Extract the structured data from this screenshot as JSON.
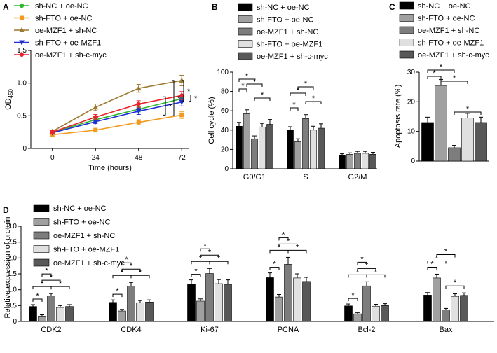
{
  "colors": {
    "black": "#000000",
    "green": "#2db82d",
    "orange": "#f39a1e",
    "olive": "#9b7a2f",
    "blue": "#1f2fd6",
    "red": "#e8232a",
    "g1": "#000000",
    "g2": "#a0a0a0",
    "g3": "#7d7d7d",
    "g4": "#e0e0e0",
    "g5": "#585858"
  },
  "chart_data": [
    {
      "panel": "A",
      "type": "line",
      "xlabel": "Time (hours)",
      "ylabel": "OD",
      "ylabel_sub": "450",
      "x": [
        0,
        24,
        48,
        72
      ],
      "xticks": [
        "0",
        "24",
        "48",
        "72"
      ],
      "yticks": [
        "0",
        "0.5",
        "1.0",
        "1.5"
      ],
      "ylim": [
        0,
        1.5
      ],
      "series": [
        {
          "name": "sh-NC + oe-NC",
          "values": [
            0.25,
            0.44,
            0.6,
            0.76
          ],
          "errors": [
            0.02,
            0.03,
            0.04,
            0.05
          ]
        },
        {
          "name": "sh-FTO + oe-NC",
          "values": [
            0.21,
            0.28,
            0.4,
            0.51
          ],
          "errors": [
            0.02,
            0.03,
            0.04,
            0.05
          ]
        },
        {
          "name": "oe-MZF1 + sh-NC",
          "values": [
            0.26,
            0.63,
            0.92,
            1.04
          ],
          "errors": [
            0.02,
            0.05,
            0.06,
            0.08
          ]
        },
        {
          "name": "sh-FTO + oe-MZF1",
          "values": [
            0.24,
            0.41,
            0.57,
            0.71
          ],
          "errors": [
            0.02,
            0.03,
            0.05,
            0.06
          ]
        },
        {
          "name": "oe-MZF1 + sh-c-myc",
          "values": [
            0.25,
            0.48,
            0.68,
            0.81
          ],
          "errors": [
            0.02,
            0.04,
            0.05,
            0.06
          ]
        }
      ],
      "significance": [
        "*",
        "*",
        "*",
        "*"
      ]
    },
    {
      "panel": "B",
      "type": "bar",
      "ylabel": "Cell cycle (%)",
      "categories": [
        "G0/G1",
        "S",
        "G2/M"
      ],
      "yticks": [
        "0",
        "20",
        "40",
        "60",
        "80",
        "100"
      ],
      "ylim": [
        0,
        100
      ],
      "series": [
        {
          "name": "sh-NC + oe-NC",
          "values": [
            44,
            40,
            14
          ],
          "errors": [
            4,
            3.5,
            1.5
          ]
        },
        {
          "name": "sh-FTO + oe-NC",
          "values": [
            57,
            28,
            15
          ],
          "errors": [
            4,
            3,
            1.5
          ]
        },
        {
          "name": "oe-MZF1 + sh-NC",
          "values": [
            31,
            52,
            16
          ],
          "errors": [
            3,
            4,
            2
          ]
        },
        {
          "name": "sh-FTO + oe-MZF1",
          "values": [
            43,
            40,
            16
          ],
          "errors": [
            4,
            4,
            2
          ]
        },
        {
          "name": "oe-MZF1 + sh-c-myc",
          "values": [
            46,
            42,
            15
          ],
          "errors": [
            5,
            4.5,
            2
          ]
        }
      ],
      "significance": [
        "*",
        "*",
        "*",
        "*",
        "*",
        "*",
        "*",
        "*"
      ]
    },
    {
      "panel": "C",
      "type": "bar",
      "ylabel": "Apoptosis rate (%)",
      "yticks": [
        "0",
        "10",
        "20",
        "30"
      ],
      "ylim": [
        0,
        30
      ],
      "series": [
        {
          "name": "sh-NC + oe-NC",
          "values": [
            13
          ],
          "errors": [
            1.8
          ]
        },
        {
          "name": "sh-FTO + oe-NC",
          "values": [
            25.5
          ],
          "errors": [
            2
          ]
        },
        {
          "name": "oe-MZF1 + sh-NC",
          "values": [
            4.5
          ],
          "errors": [
            0.8
          ]
        },
        {
          "name": "sh-FTO + oe-MZF1",
          "values": [
            14.5
          ],
          "errors": [
            1.6
          ]
        },
        {
          "name": "oe-MZF1 + sh-c-myc",
          "values": [
            13
          ],
          "errors": [
            1.8
          ]
        }
      ],
      "significance": [
        "*",
        "*",
        "*",
        "*"
      ]
    },
    {
      "panel": "D",
      "type": "bar",
      "ylabel": "Relative expression of protein",
      "categories": [
        "CDK2",
        "CDK4",
        "Ki-67",
        "PCNA",
        "Bcl-2",
        "Bax"
      ],
      "yticks": [
        "0",
        "0.5",
        "1.0",
        "1.5",
        "2.0",
        "2.5",
        "3.0"
      ],
      "ylim": [
        0,
        3.0
      ],
      "series": [
        {
          "name": "sh-NC + oe-NC",
          "values": [
            0.47,
            0.6,
            1.17,
            1.38,
            0.49,
            0.83
          ],
          "errors": [
            0.06,
            0.08,
            0.14,
            0.15,
            0.06,
            0.08
          ]
        },
        {
          "name": "sh-FTO + oe-NC",
          "values": [
            0.17,
            0.33,
            0.64,
            0.77,
            0.24,
            1.37
          ],
          "errors": [
            0.04,
            0.05,
            0.07,
            0.08,
            0.04,
            0.12
          ]
        },
        {
          "name": "oe-MZF1 + sh-NC",
          "values": [
            0.8,
            1.11,
            1.51,
            1.8,
            1.12,
            0.36
          ],
          "errors": [
            0.08,
            0.12,
            0.16,
            0.22,
            0.13,
            0.05
          ]
        },
        {
          "name": "sh-FTO + oe-MZF1",
          "values": [
            0.44,
            0.59,
            1.19,
            1.37,
            0.48,
            0.79
          ],
          "errors": [
            0.06,
            0.07,
            0.13,
            0.13,
            0.06,
            0.08
          ]
        },
        {
          "name": "oe-MZF1 + sh-c-myc",
          "values": [
            0.47,
            0.61,
            1.17,
            1.26,
            0.5,
            0.82
          ],
          "errors": [
            0.06,
            0.07,
            0.14,
            0.13,
            0.06,
            0.08
          ]
        }
      ],
      "significance": [
        "*",
        "*",
        "*",
        "*",
        "*",
        "*",
        "*",
        "*",
        "*",
        "*",
        "*",
        "*",
        "*",
        "*",
        "*",
        "*",
        "*",
        "*",
        "*",
        "*",
        "*",
        "*",
        "*",
        "*",
        "*",
        "*",
        "*",
        "*",
        "*",
        "*"
      ]
    }
  ],
  "labels": {
    "A": "A",
    "B": "B",
    "C": "C",
    "D": "D"
  }
}
